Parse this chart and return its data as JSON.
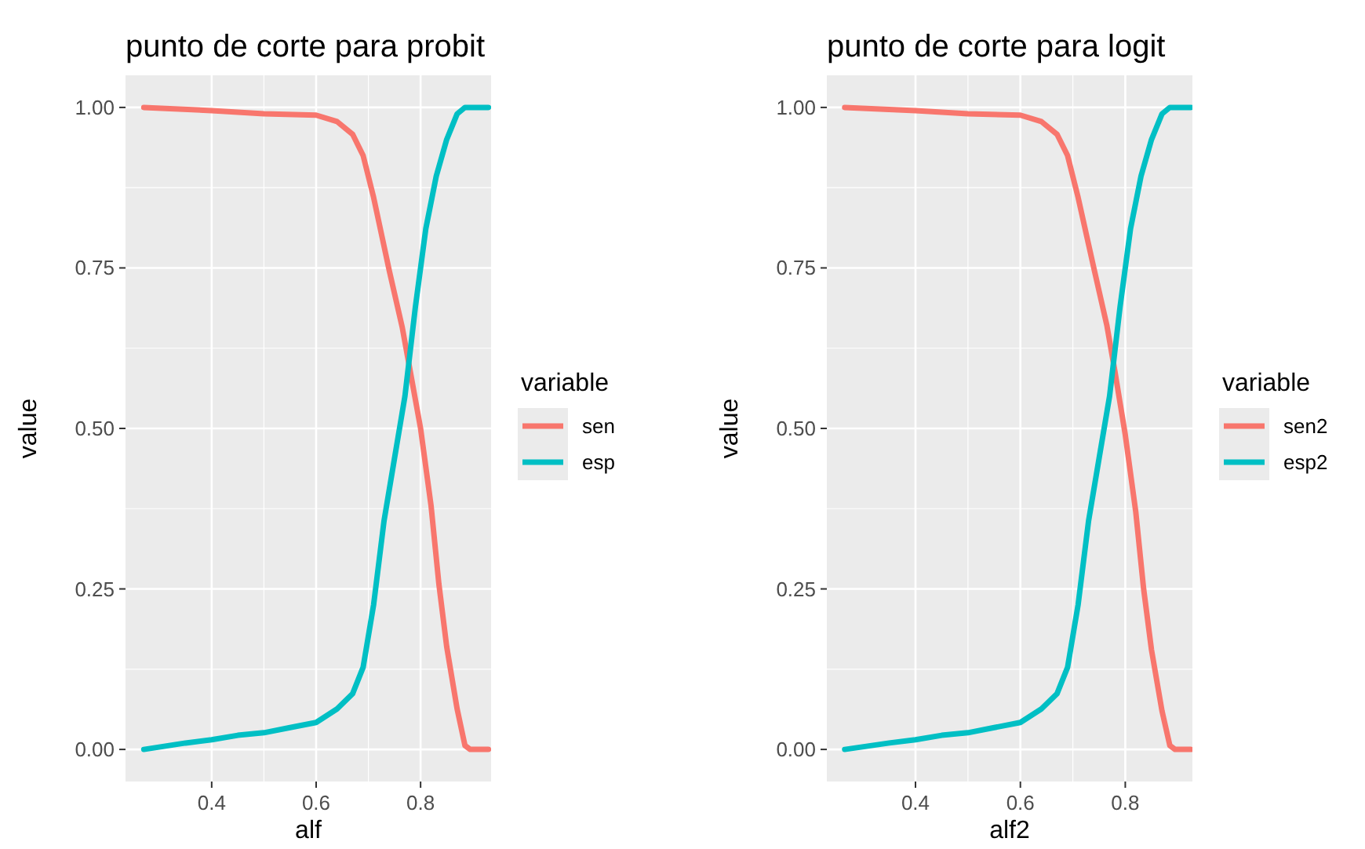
{
  "chart_data": [
    {
      "type": "line",
      "title": "punto de corte para probit",
      "xlabel": "alf",
      "ylabel": "value",
      "legend_title": "variable",
      "legend": "right",
      "grid": true,
      "xlim": [
        0.235,
        0.935
      ],
      "xticks": [
        0.4,
        0.6,
        0.8
      ],
      "ylim": [
        -0.05,
        1.05
      ],
      "yticks": [
        {
          "value": 0,
          "label": "0.00"
        },
        {
          "value": 0.25,
          "label": "0.25"
        },
        {
          "value": 0.5,
          "label": "0.50"
        },
        {
          "value": 0.75,
          "label": "0.75"
        },
        {
          "value": 1,
          "label": "1.00"
        }
      ],
      "series": [
        {
          "name": "sen",
          "color": "#f8766d",
          "x": [
            0.27,
            0.4,
            0.5,
            0.6,
            0.64,
            0.67,
            0.69,
            0.71,
            0.74,
            0.765,
            0.78,
            0.8,
            0.82,
            0.835,
            0.85,
            0.87,
            0.885,
            0.895,
            0.93
          ],
          "values": [
            1,
            0.995,
            0.99,
            0.988,
            0.978,
            0.958,
            0.925,
            0.86,
            0.746,
            0.657,
            0.59,
            0.5,
            0.38,
            0.258,
            0.16,
            0.063,
            0.006,
            0,
            0
          ]
        },
        {
          "name": "esp",
          "color": "#00bfc4",
          "x": [
            0.27,
            0.35,
            0.4,
            0.45,
            0.5,
            0.55,
            0.6,
            0.64,
            0.67,
            0.69,
            0.71,
            0.73,
            0.75,
            0.77,
            0.79,
            0.81,
            0.83,
            0.85,
            0.87,
            0.885,
            0.93
          ],
          "values": [
            0,
            0.01,
            0.015,
            0.022,
            0.026,
            0.034,
            0.042,
            0.063,
            0.087,
            0.128,
            0.225,
            0.356,
            0.453,
            0.55,
            0.689,
            0.811,
            0.893,
            0.95,
            0.99,
            1,
            1
          ]
        }
      ]
    },
    {
      "type": "line",
      "title": "punto de corte para logit",
      "xlabel": "alf2",
      "ylabel": "value",
      "legend_title": "variable",
      "legend": "right",
      "grid": true,
      "xlim": [
        0.231,
        0.928
      ],
      "xticks": [
        0.4,
        0.6,
        0.8
      ],
      "ylim": [
        -0.05,
        1.05
      ],
      "yticks": [
        {
          "value": 0,
          "label": "0.00"
        },
        {
          "value": 0.25,
          "label": "0.25"
        },
        {
          "value": 0.5,
          "label": "0.50"
        },
        {
          "value": 0.75,
          "label": "0.75"
        },
        {
          "value": 1,
          "label": "1.00"
        }
      ],
      "series": [
        {
          "name": "sen2",
          "color": "#f8766d",
          "x": [
            0.265,
            0.4,
            0.5,
            0.6,
            0.64,
            0.67,
            0.69,
            0.71,
            0.74,
            0.765,
            0.78,
            0.8,
            0.82,
            0.835,
            0.85,
            0.87,
            0.885,
            0.895,
            0.925
          ],
          "values": [
            1,
            0.995,
            0.99,
            0.988,
            0.978,
            0.958,
            0.925,
            0.86,
            0.75,
            0.66,
            0.59,
            0.49,
            0.37,
            0.25,
            0.155,
            0.06,
            0.006,
            0,
            0
          ]
        },
        {
          "name": "esp2",
          "color": "#00bfc4",
          "x": [
            0.265,
            0.35,
            0.4,
            0.45,
            0.5,
            0.55,
            0.6,
            0.64,
            0.67,
            0.69,
            0.71,
            0.73,
            0.75,
            0.77,
            0.79,
            0.81,
            0.83,
            0.85,
            0.87,
            0.885,
            0.925
          ],
          "values": [
            0,
            0.01,
            0.015,
            0.022,
            0.026,
            0.034,
            0.042,
            0.063,
            0.087,
            0.128,
            0.225,
            0.356,
            0.453,
            0.55,
            0.689,
            0.811,
            0.893,
            0.95,
            0.99,
            1,
            1
          ]
        }
      ]
    }
  ]
}
